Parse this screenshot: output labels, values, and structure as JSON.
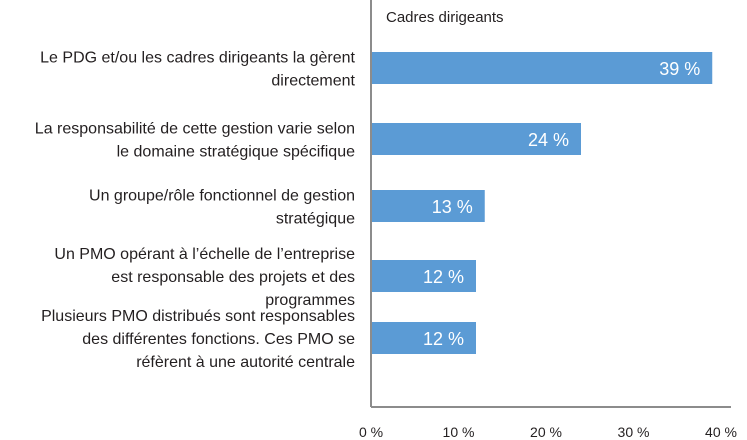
{
  "chart_data": {
    "type": "bar",
    "orientation": "horizontal",
    "categories": [
      [
        "Le PDG et/ou les cadres dirigeants la gèrent",
        "directement"
      ],
      [
        "La responsabilité de cette gestion varie selon",
        "le domaine stratégique spécifique"
      ],
      [
        "Un groupe/rôle fonctionnel de gestion",
        "stratégique"
      ],
      [
        "Un PMO opérant à l’échelle de l’entreprise",
        "est responsable des projets et des",
        "programmes"
      ],
      [
        "Plusieurs PMO distribués sont responsables",
        "des différentes fonctions. Ces PMO se",
        "réfèrent à une autorité centrale"
      ]
    ],
    "series": [
      {
        "name": "Cadres dirigeants",
        "values": [
          39,
          24,
          13,
          12,
          12
        ],
        "data_labels": [
          "39 %",
          "24 %",
          "13 %",
          "12 %",
          "12 %"
        ]
      }
    ],
    "xlim": [
      0,
      40
    ],
    "x_ticks": [
      0,
      10,
      20,
      30,
      40
    ],
    "x_tick_labels": [
      "0 %",
      "10 %",
      "20 %",
      "30 %",
      "40 %"
    ],
    "legend_placement": "top",
    "grid": false,
    "bar_color": "#5b9bd5"
  }
}
